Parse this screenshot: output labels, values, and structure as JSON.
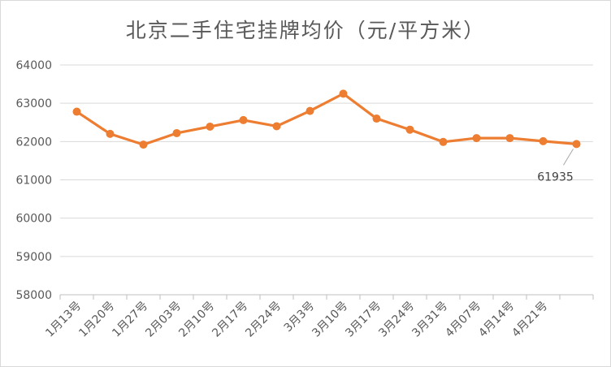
{
  "chart_data": {
    "type": "line",
    "title": "北京二手住宅挂牌均价（元/平方米）",
    "xlabel": "",
    "ylabel": "",
    "categories": [
      "1月13号",
      "1月20号",
      "1月27号",
      "2月03号",
      "2月10号",
      "2月17号",
      "2月24号",
      "3月3号",
      "3月10号",
      "3月17号",
      "3月24号",
      "3月31号",
      "4月07号",
      "4月14号",
      "4月21号",
      ""
    ],
    "x_tick_labels": [
      "1月13号",
      "1月20号",
      "1月27号",
      "2月03号",
      "2月10号",
      "2月17号",
      "2月24号",
      "3月3号",
      "3月10号",
      "3月17号",
      "3月24号",
      "3月31号",
      "4月07号",
      "4月14号",
      "4月21号"
    ],
    "series": [
      {
        "values": [
          62780,
          62200,
          61920,
          62220,
          62390,
          62560,
          62400,
          62800,
          63250,
          62600,
          62310,
          61990,
          62090,
          62090,
          62010,
          61935
        ]
      }
    ],
    "ylim": [
      58000,
      64000
    ],
    "y_ticks": [
      "58000",
      "59000",
      "60000",
      "61000",
      "62000",
      "63000",
      "64000"
    ],
    "data_labels": [
      {
        "index": 15,
        "text": "61935"
      }
    ],
    "grid": "horizontal",
    "legend": "none",
    "colors": {
      "line": "#ed7d31",
      "grid": "#d9d9d9",
      "text": "#595959"
    }
  }
}
